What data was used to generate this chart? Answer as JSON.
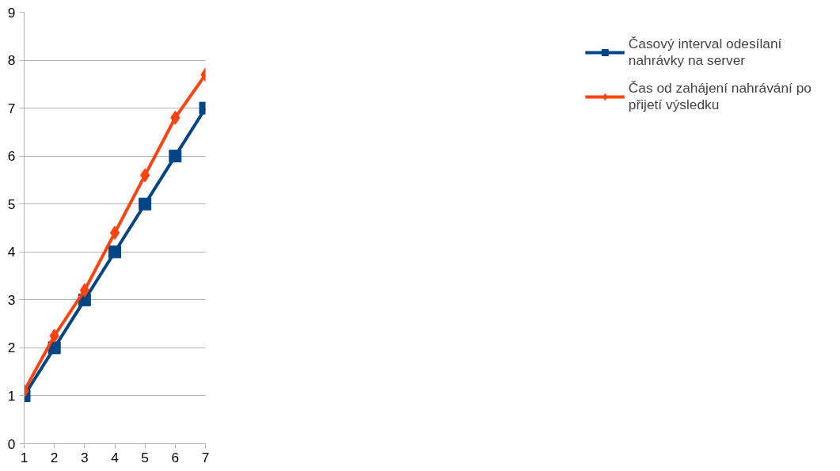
{
  "chart_data": {
    "type": "line",
    "x": [
      1,
      2,
      3,
      4,
      5,
      6,
      7
    ],
    "series": [
      {
        "name": "Časový interval odesílaní nahrávky na server",
        "color": "#004586",
        "marker": "square",
        "values": [
          1,
          2,
          3,
          4,
          5,
          6,
          7
        ]
      },
      {
        "name": "Čas od zahájení nahrávání po přijetí výsledku",
        "color": "#ff420e",
        "marker": "diamond",
        "values": [
          1.1,
          2.25,
          3.2,
          4.4,
          5.6,
          6.8,
          7.7
        ]
      }
    ],
    "xlim": [
      1,
      7
    ],
    "xticks": [
      1,
      2,
      3,
      4,
      5,
      6,
      7
    ],
    "ylim": [
      0,
      9
    ],
    "yticks": [
      0,
      1,
      2,
      3,
      4,
      5,
      6,
      7,
      8,
      9
    ],
    "grid": "y",
    "legend": "right",
    "line_style": "solid"
  }
}
